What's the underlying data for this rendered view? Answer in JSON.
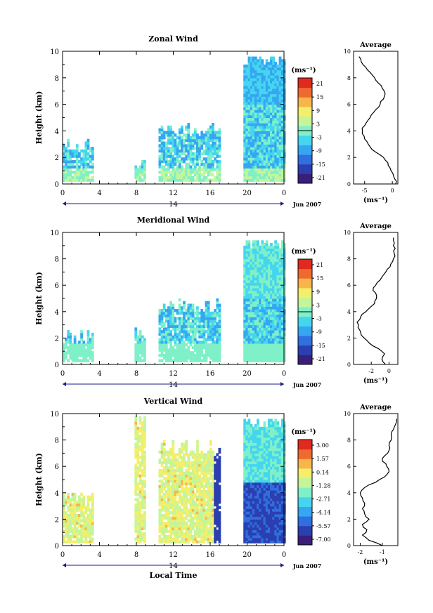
{
  "chart_data": [
    {
      "type": "heatmap",
      "title": "Zonal Wind",
      "ylabel": "Height (km)",
      "ylim": [
        0,
        10
      ],
      "yticks": [
        "0",
        "2",
        "4",
        "6",
        "8",
        "10"
      ],
      "xticks": [
        "0",
        "4",
        "8",
        "12",
        "16",
        "20",
        "0"
      ],
      "day_label": "14",
      "month_label": "Jun 2007",
      "colorbar_unit": "(ms⁻¹)",
      "colorbar_ticks": [
        "21",
        "15",
        "9",
        "3",
        "-3",
        "-9",
        "-15",
        "-21"
      ],
      "average": {
        "title": "Average",
        "xlabel": "(ms⁻¹)",
        "xticks": [
          "-5",
          "0"
        ],
        "xlim": [
          -7,
          1
        ],
        "yticks": [
          "0",
          "2",
          "4",
          "6",
          "8",
          "10"
        ],
        "profile": [
          [
            0.0,
            0.6
          ],
          [
            0.4,
            0.4
          ],
          [
            0.8,
            0.1
          ],
          [
            1.2,
            -0.4
          ],
          [
            1.6,
            -0.8
          ],
          [
            2.0,
            -1.6
          ],
          [
            2.4,
            -3.0
          ],
          [
            2.8,
            -4.0
          ],
          [
            3.2,
            -4.6
          ],
          [
            3.6,
            -5.1
          ],
          [
            4.0,
            -5.4
          ],
          [
            4.4,
            -5.0
          ],
          [
            4.8,
            -4.4
          ],
          [
            5.2,
            -3.8
          ],
          [
            5.6,
            -3.0
          ],
          [
            6.0,
            -2.2
          ],
          [
            6.4,
            -1.6
          ],
          [
            6.8,
            -1.3
          ],
          [
            7.2,
            -1.8
          ],
          [
            7.6,
            -2.5
          ],
          [
            8.0,
            -3.2
          ],
          [
            8.4,
            -4.0
          ],
          [
            8.8,
            -4.8
          ],
          [
            9.2,
            -5.6
          ],
          [
            9.6,
            -6.0
          ]
        ]
      }
    },
    {
      "type": "heatmap",
      "title": "Meridional Wind",
      "ylabel": "Height (km)",
      "ylim": [
        0,
        10
      ],
      "yticks": [
        "0",
        "2",
        "4",
        "6",
        "8",
        "10"
      ],
      "xticks": [
        "0",
        "4",
        "8",
        "12",
        "16",
        "20",
        "0"
      ],
      "day_label": "14",
      "month_label": "Jun 2007",
      "colorbar_unit": "(ms⁻¹)",
      "colorbar_ticks": [
        "21",
        "15",
        "9",
        "3",
        "-3",
        "-9",
        "-15",
        "-21"
      ],
      "average": {
        "title": "Average",
        "xlabel": "(ms⁻¹)",
        "xticks": [
          "-2",
          "0"
        ],
        "xlim": [
          -4,
          1
        ],
        "yticks": [
          "0",
          "2",
          "4",
          "6",
          "8",
          "10"
        ],
        "profile": [
          [
            0.0,
            -0.4
          ],
          [
            0.4,
            -0.8
          ],
          [
            0.8,
            -0.5
          ],
          [
            1.2,
            -1.2
          ],
          [
            1.6,
            -2.2
          ],
          [
            2.0,
            -2.8
          ],
          [
            2.4,
            -3.2
          ],
          [
            2.8,
            -3.5
          ],
          [
            3.2,
            -3.6
          ],
          [
            3.6,
            -3.2
          ],
          [
            4.0,
            -2.6
          ],
          [
            4.4,
            -2.0
          ],
          [
            4.8,
            -1.6
          ],
          [
            5.2,
            -1.4
          ],
          [
            5.6,
            -1.8
          ],
          [
            6.0,
            -1.5
          ],
          [
            6.4,
            -1.0
          ],
          [
            6.8,
            -0.6
          ],
          [
            7.2,
            -0.2
          ],
          [
            7.6,
            0.2
          ],
          [
            8.0,
            0.5
          ],
          [
            8.4,
            0.6
          ],
          [
            8.8,
            0.7
          ],
          [
            9.2,
            0.6
          ],
          [
            9.6,
            0.5
          ]
        ]
      }
    },
    {
      "type": "heatmap",
      "title": "Vertical Wind",
      "ylabel": "Height (km)",
      "ylim": [
        0,
        10
      ],
      "yticks": [
        "0",
        "2",
        "4",
        "6",
        "8",
        "10"
      ],
      "xticks": [
        "0",
        "4",
        "8",
        "12",
        "16",
        "20",
        "0"
      ],
      "day_label": "14",
      "month_label": "Jun 2007",
      "xlabel": "Local Time",
      "colorbar_unit": "(ms⁻¹)",
      "colorbar_ticks": [
        "3.00",
        "1.57",
        "0.14",
        "-1.28",
        "-2.71",
        "-4.14",
        "-5.57",
        "-7.00"
      ],
      "average": {
        "title": "Average",
        "xlabel": "(ms⁻¹)",
        "xticks": [
          "-2",
          "-1"
        ],
        "xlim": [
          -2.3,
          -0.3
        ],
        "yticks": [
          "0",
          "2",
          "4",
          "6",
          "8",
          "10"
        ],
        "profile": [
          [
            0.0,
            -1.0
          ],
          [
            0.4,
            -1.6
          ],
          [
            0.8,
            -1.9
          ],
          [
            1.2,
            -1.7
          ],
          [
            1.6,
            -1.9
          ],
          [
            2.0,
            -1.6
          ],
          [
            2.4,
            -1.8
          ],
          [
            2.8,
            -1.9
          ],
          [
            3.2,
            -1.8
          ],
          [
            3.6,
            -1.9
          ],
          [
            4.0,
            -2.0
          ],
          [
            4.4,
            -1.8
          ],
          [
            4.8,
            -1.3
          ],
          [
            5.2,
            -0.9
          ],
          [
            5.6,
            -0.7
          ],
          [
            6.0,
            -0.8
          ],
          [
            6.4,
            -1.0
          ],
          [
            6.8,
            -0.9
          ],
          [
            7.2,
            -0.7
          ],
          [
            7.6,
            -0.7
          ],
          [
            8.0,
            -0.6
          ],
          [
            8.4,
            -0.6
          ],
          [
            8.8,
            -0.5
          ],
          [
            9.2,
            -0.4
          ],
          [
            9.6,
            -0.35
          ]
        ]
      }
    }
  ],
  "colors": {
    "palette": [
      "#3a1f7a",
      "#2b3fb0",
      "#2f6fe0",
      "#36a6f2",
      "#44d6ef",
      "#7ff0c8",
      "#c4f59a",
      "#f4ef6a",
      "#f8b64a",
      "#f06a2f",
      "#e02a1e"
    ]
  }
}
